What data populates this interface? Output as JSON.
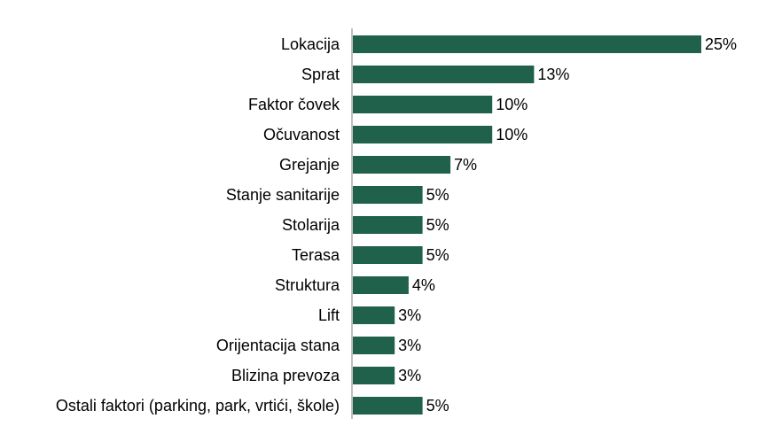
{
  "colors": {
    "bar": "#1f614a",
    "axis": "#7f7f7f",
    "text": "#000000",
    "background": "#ffffff"
  },
  "chart_data": {
    "type": "bar",
    "orientation": "horizontal",
    "categories": [
      "Lokacija",
      "Sprat",
      "Faktor čovek",
      "Očuvanost",
      "Grejanje",
      "Stanje sanitarije",
      "Stolarija",
      "Terasa",
      "Struktura",
      "Lift",
      "Orijentacija stana",
      "Blizina prevoza",
      "Ostali faktori (parking, park, vrtići, škole)"
    ],
    "values": [
      25,
      13,
      10,
      10,
      7,
      5,
      5,
      5,
      4,
      3,
      3,
      3,
      5
    ],
    "value_labels": [
      "25%",
      "13%",
      "10%",
      "10%",
      "7%",
      "5%",
      "5%",
      "5%",
      "4%",
      "3%",
      "3%",
      "3%",
      "5%"
    ],
    "unit": "%",
    "xlim": [
      0,
      25
    ],
    "grid": false,
    "legend": "none"
  }
}
